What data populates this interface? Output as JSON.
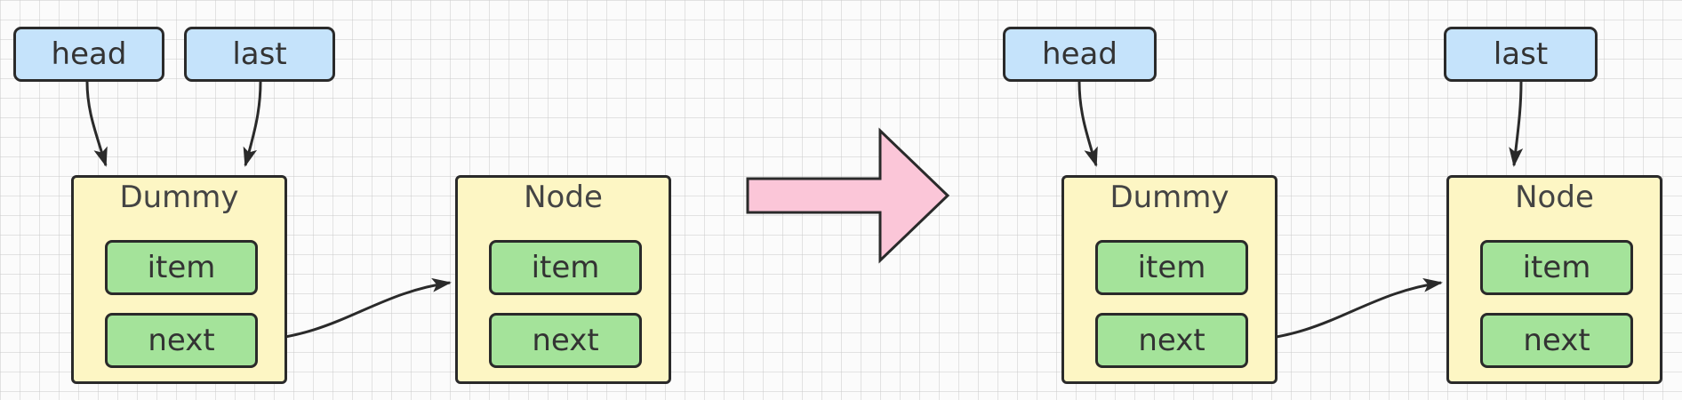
{
  "diagram": {
    "before": {
      "pointers": {
        "head": "head",
        "last": "last"
      },
      "nodes": {
        "dummy": {
          "title": "Dummy",
          "item": "item",
          "next": "next"
        },
        "node": {
          "title": "Node",
          "item": "item",
          "next": "next"
        }
      }
    },
    "after": {
      "pointers": {
        "head": "head",
        "last": "last"
      },
      "nodes": {
        "dummy": {
          "title": "Dummy",
          "item": "item",
          "next": "next"
        },
        "node": {
          "title": "Node",
          "item": "item",
          "next": "next"
        }
      }
    }
  },
  "colors": {
    "pointer_fill": "#c5e3fb",
    "node_fill": "#fdf6c4",
    "field_fill": "#a4e39a",
    "transition_arrow_fill": "#fbc6d8",
    "stroke": "#2a2a2a"
  }
}
